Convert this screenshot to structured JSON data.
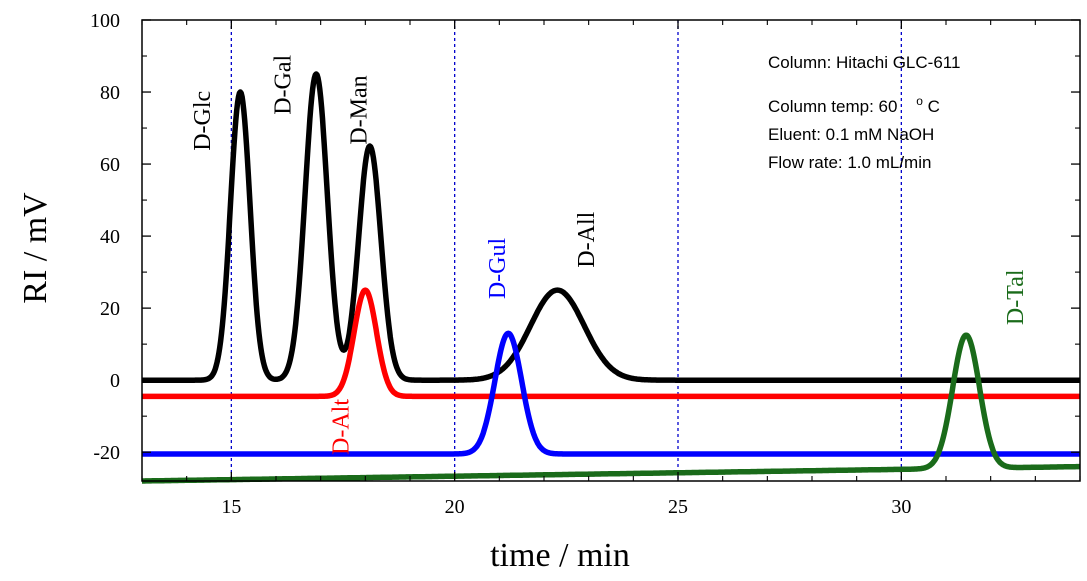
{
  "chart_data": {
    "type": "line",
    "xlabel": "time / min",
    "ylabel": "RI / mV",
    "xlim": [
      13,
      34
    ],
    "ylim": [
      -28,
      100
    ],
    "xticks": [
      15,
      20,
      25,
      30
    ],
    "yticks": [
      -20,
      0,
      20,
      40,
      60,
      80,
      100
    ],
    "xtick_labels": [
      "15",
      "20",
      "25",
      "30"
    ],
    "ytick_labels": [
      "-20",
      "0",
      "20",
      "40",
      "60",
      "80",
      "100"
    ],
    "reference_lines_x": [
      15,
      20,
      25,
      30
    ],
    "grid": false,
    "annotations": {
      "column": "Column: Hitachi GLC-611",
      "temp_prefix": "Column temp: 60",
      "temp_unit_sup": "o",
      "temp_unit": "C",
      "eluent": "Eluent: 0.1 mM NaOH",
      "flow": "Flow rate: 1.0 mL/min"
    },
    "series": [
      {
        "color": "#000000",
        "baseline": 0,
        "baseline_end": 0,
        "peaks": [
          {
            "label": "D-Glc",
            "t": 15.2,
            "height": 80,
            "sigma": 0.22
          },
          {
            "label": "D-Gal",
            "t": 16.9,
            "height": 85,
            "sigma": 0.25
          },
          {
            "label": "D-Man",
            "t": 18.1,
            "height": 65,
            "sigma": 0.25
          },
          {
            "label": "D-All",
            "t": 22.3,
            "height": 25,
            "sigma": 0.6
          }
        ]
      },
      {
        "color": "#ff0000",
        "baseline": -4.5,
        "baseline_end": -4.5,
        "peaks": [
          {
            "label": "D-Alt",
            "t": 18.0,
            "height": 29.5,
            "sigma": 0.25
          }
        ]
      },
      {
        "color": "#0000ff",
        "baseline": -20.5,
        "baseline_end": -20.5,
        "peaks": [
          {
            "label": "D-Gul",
            "t": 21.2,
            "height": 33.5,
            "sigma": 0.3
          }
        ]
      },
      {
        "color": "#1a6b1a",
        "baseline": -28,
        "baseline_end": -24,
        "peaks": [
          {
            "label": "D-Tal",
            "t": 31.45,
            "height": 37,
            "sigma": 0.3
          }
        ]
      }
    ],
    "peak_labels": [
      {
        "text": "D-Glc",
        "t": 14.4,
        "y": 72,
        "color": "#000000"
      },
      {
        "text": "D-Gal",
        "t": 16.2,
        "y": 82,
        "color": "#000000"
      },
      {
        "text": "D-Man",
        "t": 17.9,
        "y": 75,
        "color": "#000000"
      },
      {
        "text": "D-All",
        "t": 23.0,
        "y": 39,
        "color": "#000000"
      },
      {
        "text": "D-Gul",
        "t": 21.0,
        "y": 31,
        "color": "#0000ff"
      },
      {
        "text": "D-Alt",
        "t": 17.5,
        "y": -13,
        "color": "#ff0000"
      },
      {
        "text": "D-Tal",
        "t": 32.6,
        "y": 23,
        "color": "#1a6b1a"
      }
    ]
  }
}
